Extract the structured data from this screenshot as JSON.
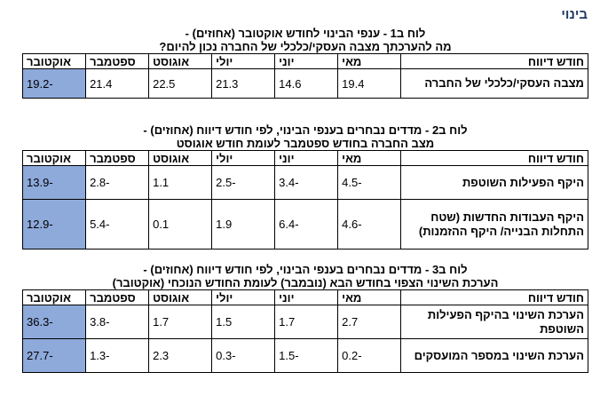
{
  "section_label": "בינוי",
  "headers": {
    "row_header": "חודש דיווח",
    "months": [
      "מאי",
      "יוני",
      "יולי",
      "אוגוסט",
      "ספטמבר",
      "אוקטובר"
    ]
  },
  "tables": [
    {
      "title_line1": "לוח ב1 - ענפי הבינוי לחודש אוקטובר (אחוזים) -",
      "title_line2": "מה להערכתך מצבה העסקי/כלכלי של החברה נכון להיום?",
      "rows": [
        {
          "label": "מצבה העסקי/כלכלי של החברה",
          "values": [
            "19.4",
            "14.6",
            "21.3",
            "22.5",
            "21.4",
            "-19.2"
          ]
        }
      ]
    },
    {
      "title_line1": "לוח ב2 - מדדים נבחרים בענפי הבינוי, לפי חודש דיווח (אחוזים) -",
      "title_line2": "מצב החברה בחודש ספטמבר לעומת חודש אוגוסט",
      "rows": [
        {
          "label": "היקף הפעילות השוטפת",
          "values": [
            "-4.5",
            "-3.4",
            "-2.5",
            "1.1",
            "-2.8",
            "-13.9"
          ]
        },
        {
          "label": "היקף העבודות החדשות (שטח התחלות הבנייה/ היקף ההזמנות)",
          "values": [
            "-4.6",
            "-6.4",
            "1.9",
            "0.1",
            "-5.4",
            "-12.9"
          ]
        }
      ]
    },
    {
      "title_line1": "לוח ב3 - מדדים נבחרים בענפי הבינוי, לפי חודש דיווח (אחוזים) -",
      "title_line2": "הערכת השינוי הצפוי בחודש הבא (נובמבר) לעומת החודש הנוכחי (אוקטובר)",
      "rows": [
        {
          "label": "הערכת השינוי בהיקף הפעילות השוטפת",
          "values": [
            "2.7",
            "1.7",
            "1.5",
            "1.7",
            "-3.8",
            "-36.3"
          ]
        },
        {
          "label": "הערכת השינוי במספר המועסקים",
          "values": [
            "-0.2",
            "-1.5",
            "-0.3",
            "2.3",
            "-1.3",
            "-27.7"
          ]
        }
      ]
    }
  ],
  "colors": {
    "highlight": "#8eaadb",
    "section_label": "#1f3864"
  }
}
